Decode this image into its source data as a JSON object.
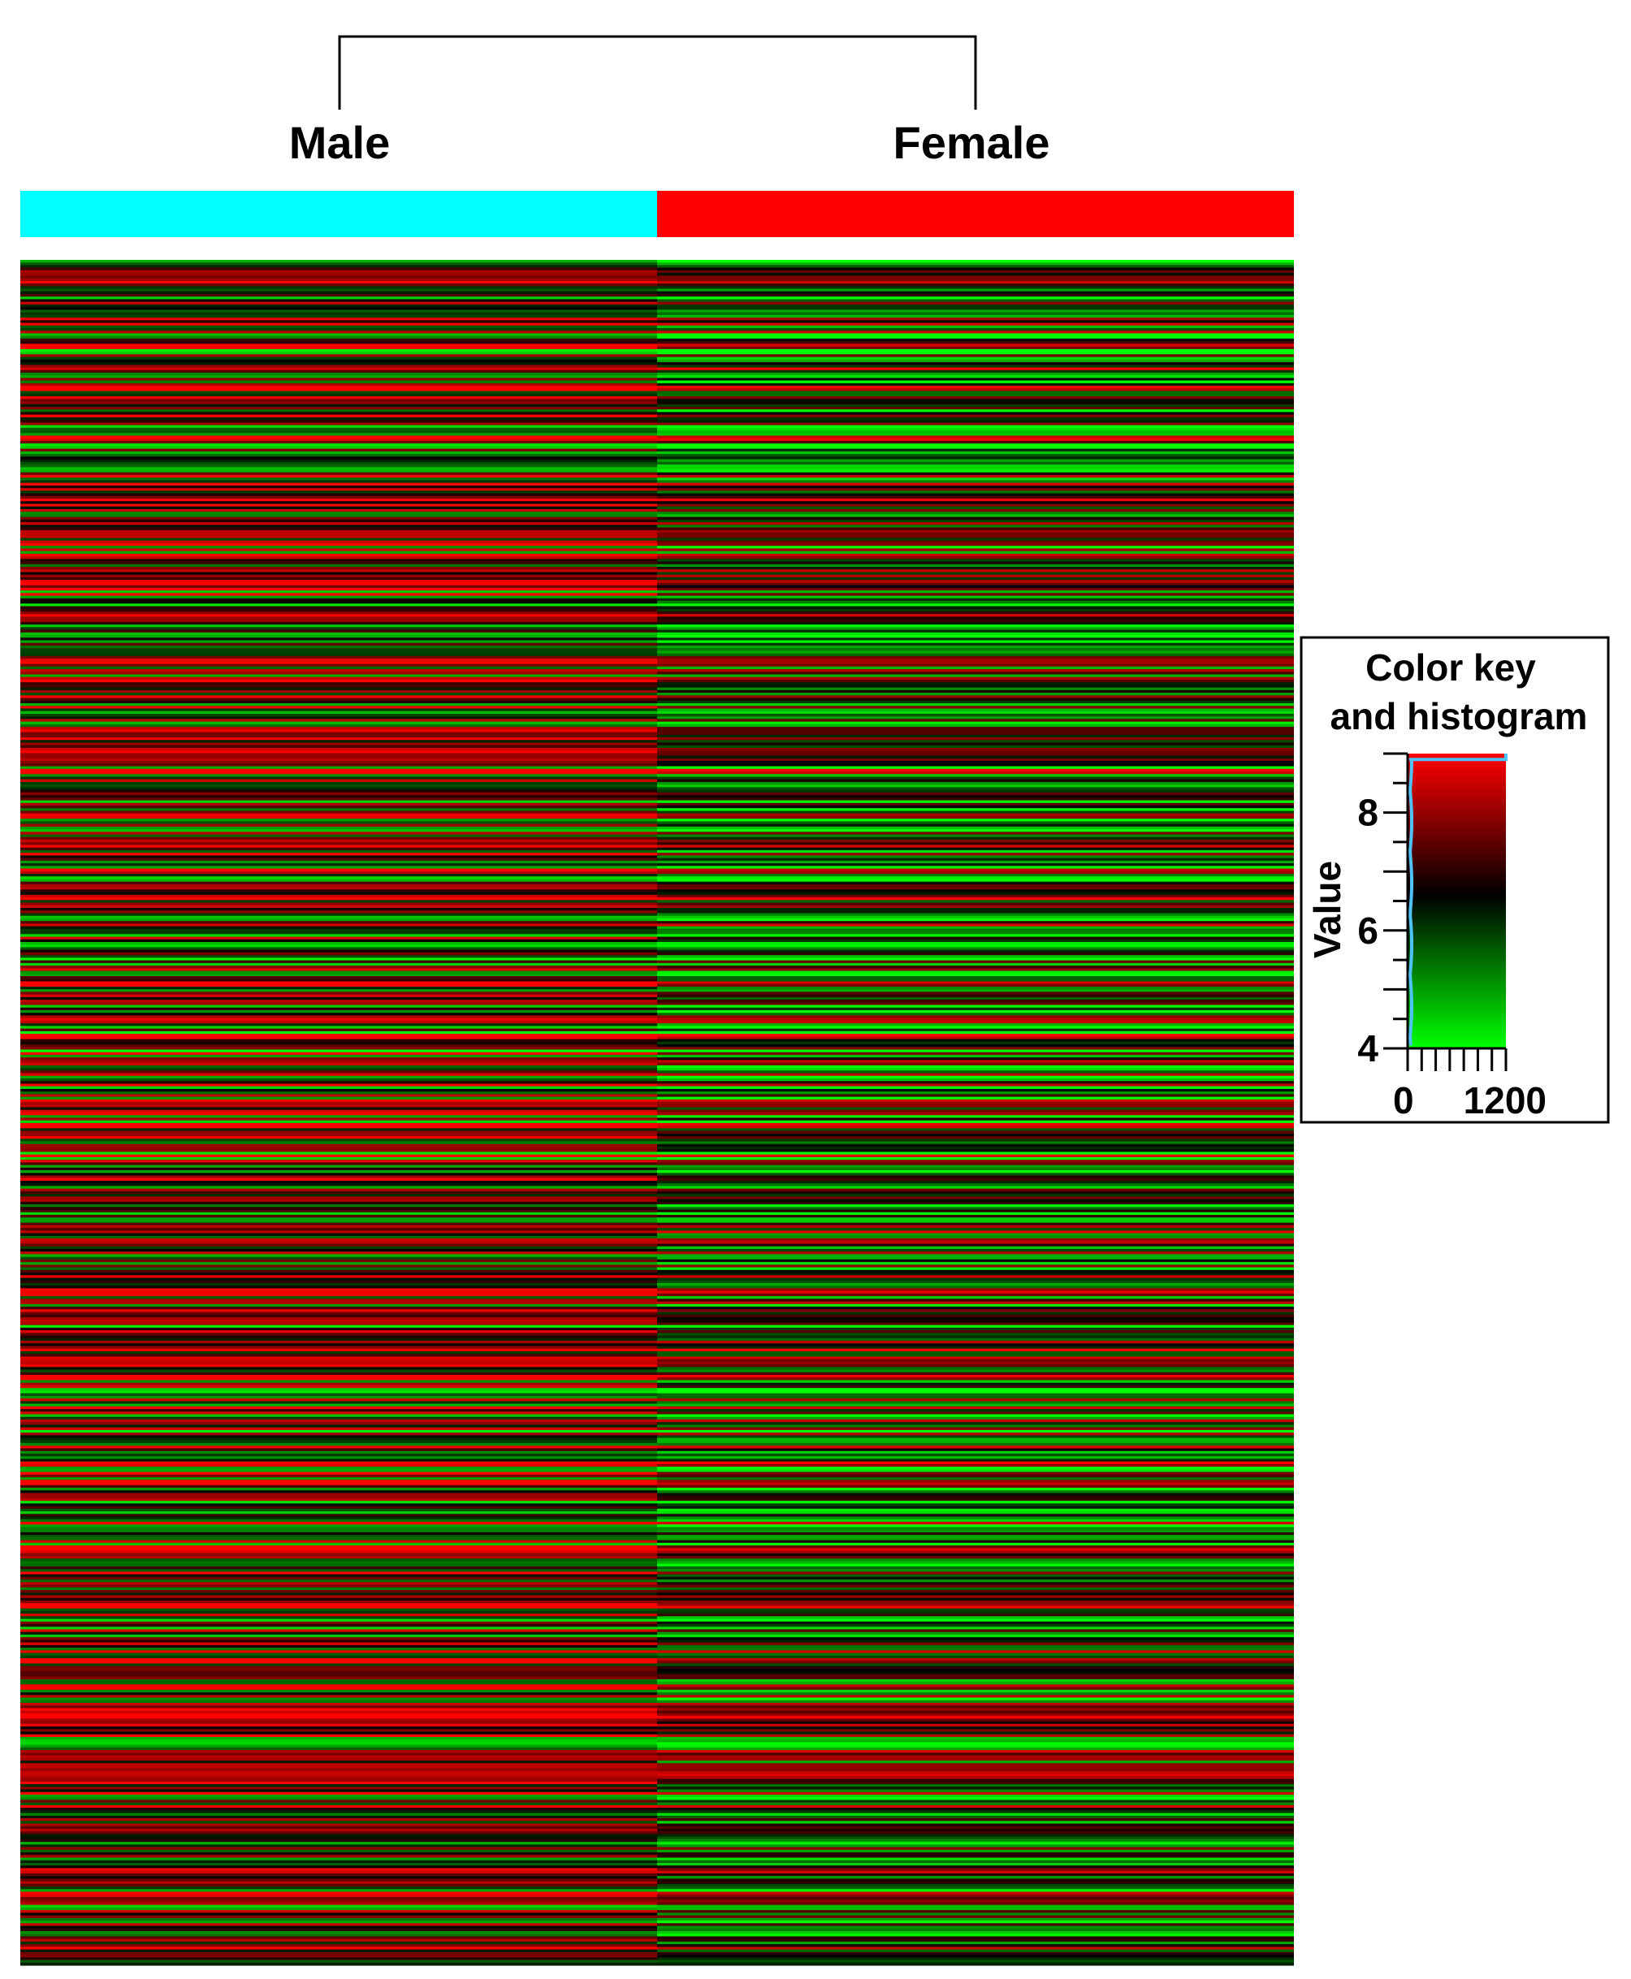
{
  "chart_data": {
    "type": "heatmap",
    "groups": [
      {
        "label": "Male",
        "color": "#00ffff"
      },
      {
        "label": "Female",
        "color": "#ff0000"
      }
    ],
    "dendrogram": "single merge of Male and Female",
    "columns": [
      "Male",
      "Female"
    ],
    "row_count": 650,
    "row_values_note": "",
    "value_range": [
      4.1,
      8.9
    ],
    "palette": {
      "low": "#00ff00",
      "mid": "#000000",
      "high": "#ff0000"
    },
    "color_key": {
      "title_line1": "Color key",
      "title_line2": "and histogram",
      "ylabel": "Value",
      "y_ticks": [
        {
          "value": 4,
          "label": "4"
        },
        {
          "value": 6,
          "label": "6"
        },
        {
          "value": 8,
          "label": "8"
        }
      ],
      "y_range": [
        4.0,
        9.0
      ],
      "x_tick_labels": [
        "0",
        "1200"
      ],
      "x_range": [
        0,
        1200
      ],
      "histogram_color": "#4fc3f7"
    }
  }
}
